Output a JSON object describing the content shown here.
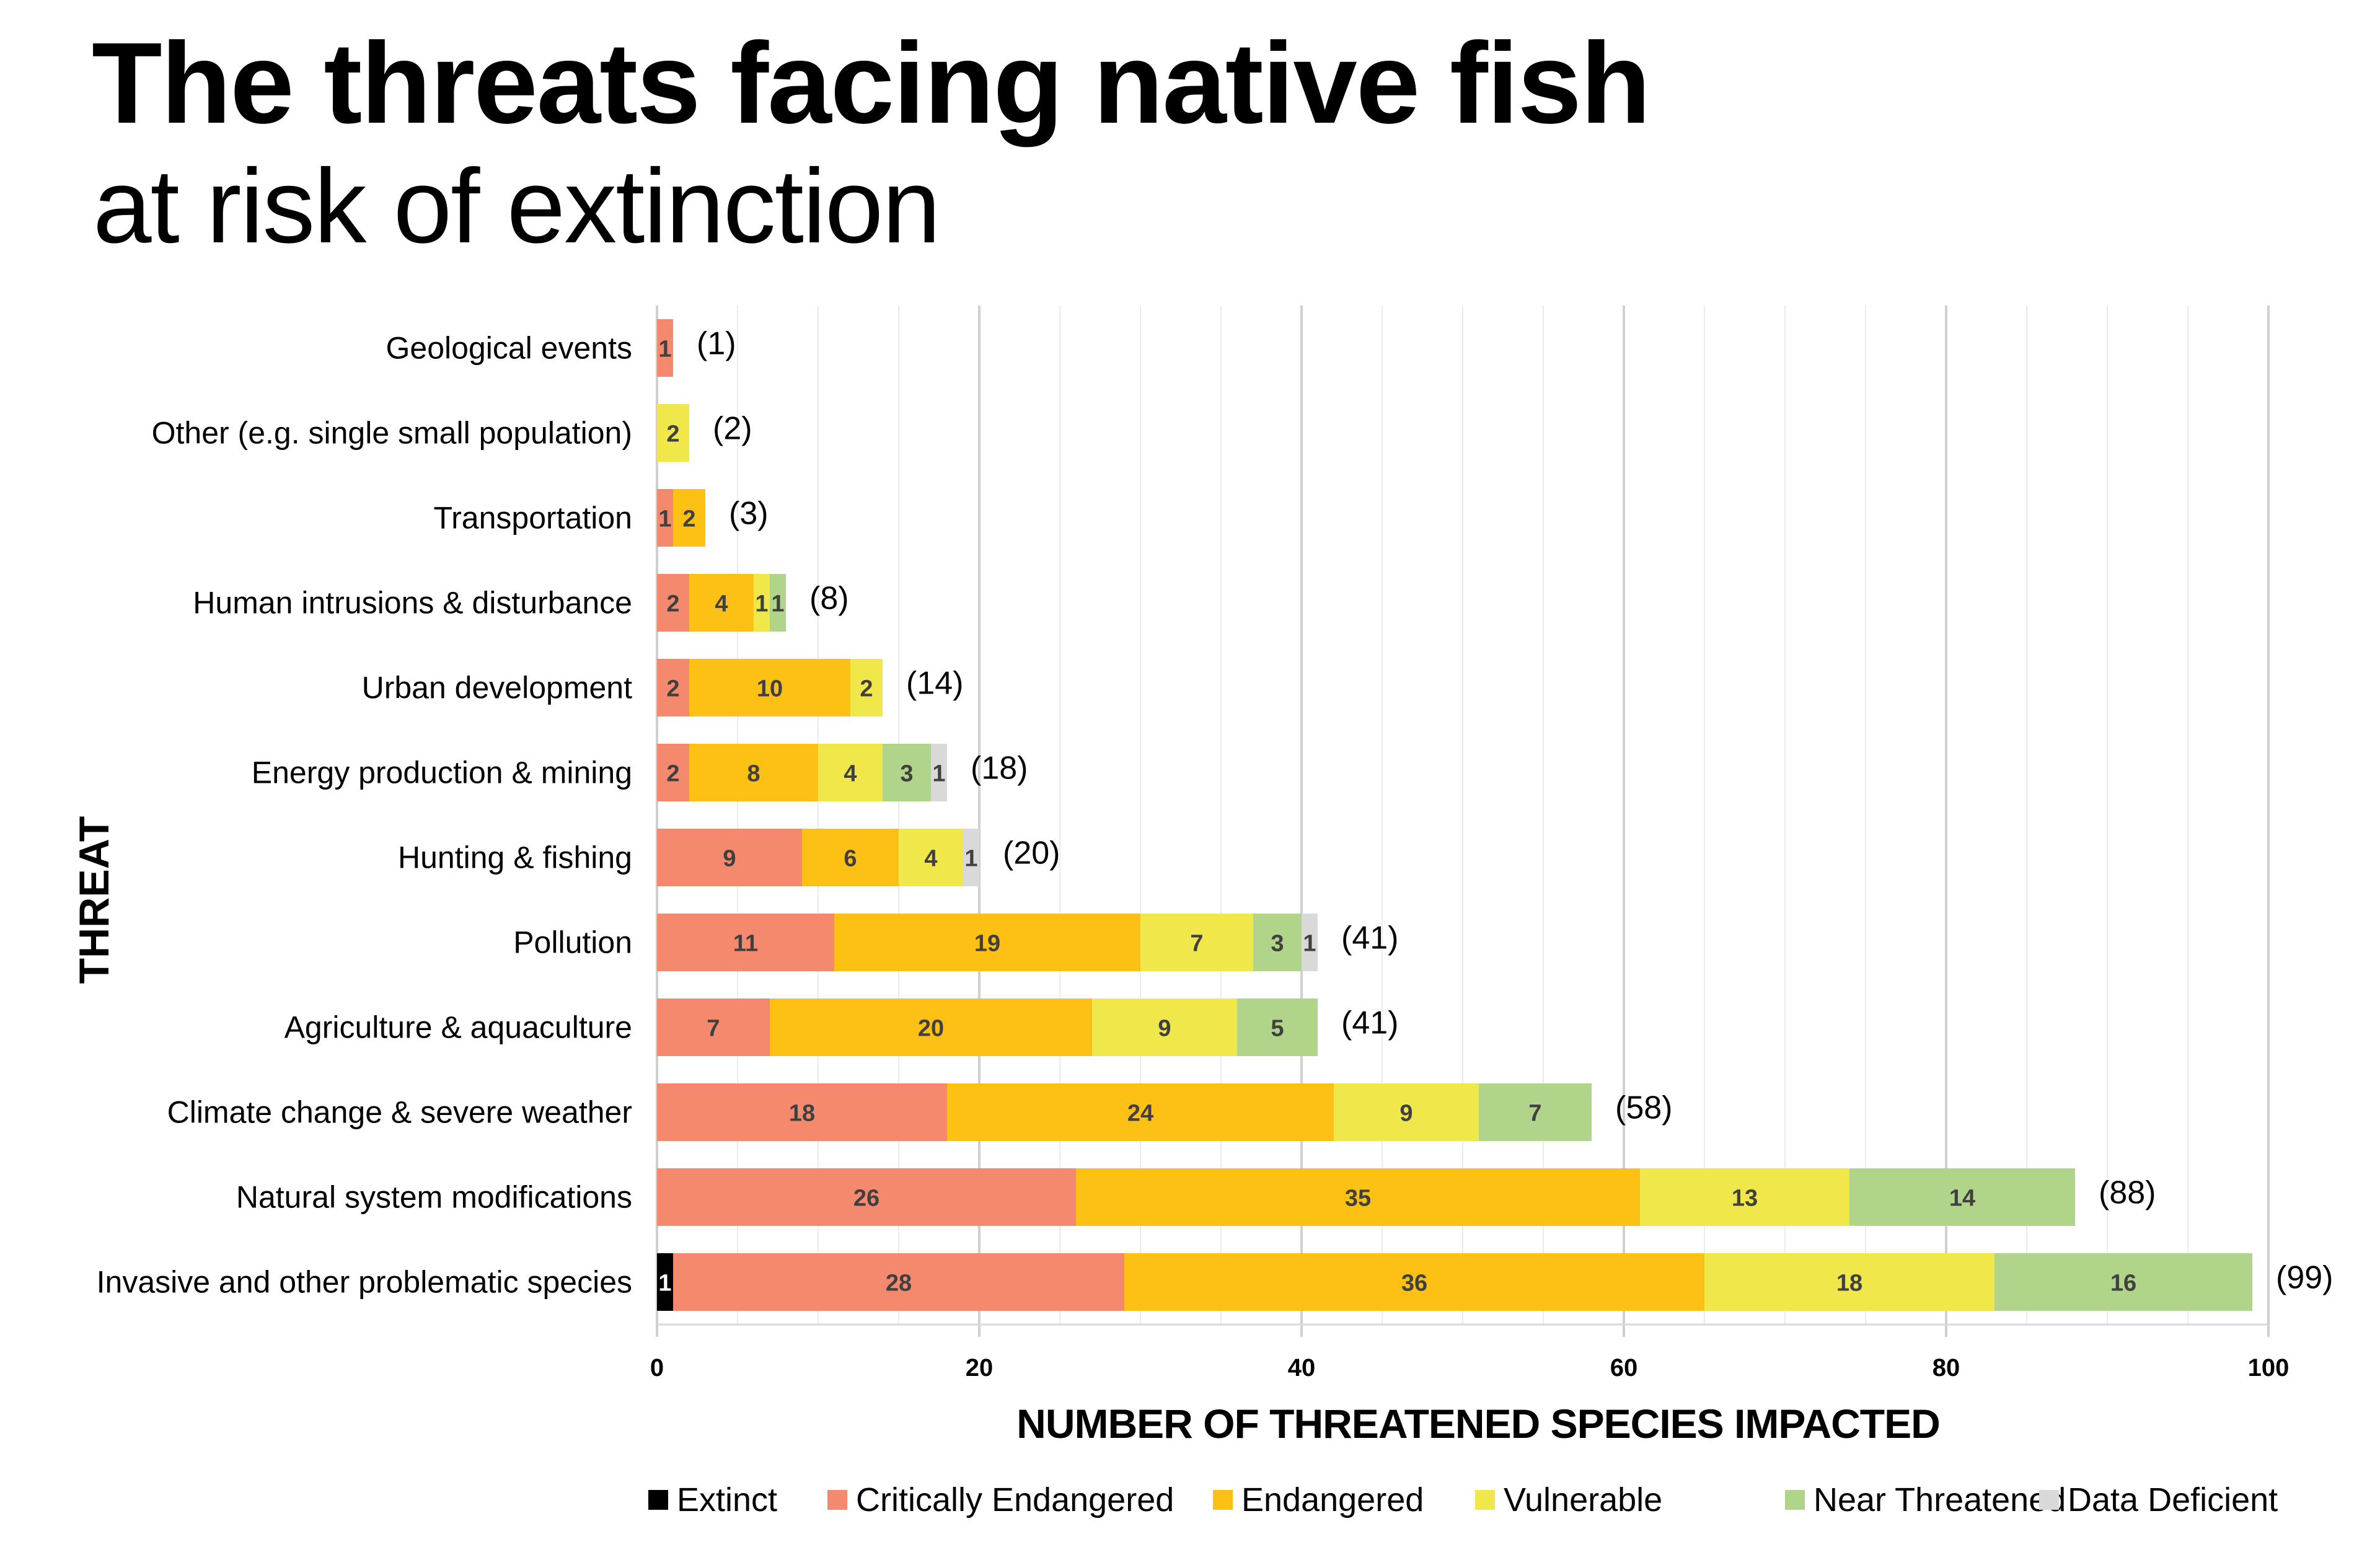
{
  "title": "The threats facing native fish",
  "subtitle": "at risk of extinction",
  "chart_data": {
    "type": "bar",
    "orientation": "horizontal",
    "stacked": true,
    "title": "The threats facing native fish at risk of extinction",
    "xlabel": "NUMBER OF THREATENED SPECIES IMPACTED",
    "ylabel": "THREAT",
    "xlim": [
      0,
      100
    ],
    "xticks": [
      0,
      20,
      40,
      60,
      80,
      100
    ],
    "xtick_labels": [
      "0",
      "20",
      "40",
      "60",
      "80",
      "100"
    ],
    "minor_grid_step": 5,
    "grid": true,
    "legend_position": "bottom",
    "categories": [
      "Geological events",
      "Other (e.g. single small population)",
      "Transportation",
      "Human intrusions & disturbance",
      "Urban development",
      "Energy production & mining",
      "Hunting & fishing",
      "Pollution",
      "Agriculture & aquaculture",
      "Climate change & severe weather",
      "Natural system modifications",
      "Invasive and other problematic species"
    ],
    "totals": [
      "(1)",
      "(2)",
      "(3)",
      "(8)",
      "(14)",
      "(18)",
      "(20)",
      "(41)",
      "(41)",
      "(58)",
      "(88)",
      "(99)"
    ],
    "series": [
      {
        "name": "Extinct",
        "color": "#000000",
        "label_color": "#ffffff",
        "values": [
          0,
          0,
          0,
          0,
          0,
          0,
          0,
          0,
          0,
          0,
          0,
          1
        ]
      },
      {
        "name": "Critically Endangered",
        "color": "#F4896E",
        "label_color": "#404040",
        "values": [
          1,
          0,
          1,
          2,
          2,
          2,
          9,
          11,
          7,
          18,
          26,
          28
        ]
      },
      {
        "name": "Endangered",
        "color": "#FDC014",
        "label_color": "#404040",
        "values": [
          0,
          0,
          2,
          4,
          10,
          8,
          6,
          19,
          20,
          24,
          35,
          36
        ]
      },
      {
        "name": "Vulnerable",
        "color": "#F0E84A",
        "label_color": "#404040",
        "values": [
          0,
          2,
          0,
          1,
          2,
          4,
          4,
          7,
          9,
          9,
          13,
          18
        ]
      },
      {
        "name": "Near Threatened",
        "color": "#B0D48A",
        "label_color": "#404040",
        "values": [
          0,
          0,
          0,
          1,
          0,
          3,
          0,
          3,
          5,
          7,
          14,
          16
        ]
      },
      {
        "name": "Data Deficient",
        "color": "#D9D9D9",
        "label_color": "#404040",
        "values": [
          0,
          0,
          0,
          0,
          0,
          1,
          1,
          1,
          0,
          0,
          0,
          0
        ]
      }
    ]
  }
}
